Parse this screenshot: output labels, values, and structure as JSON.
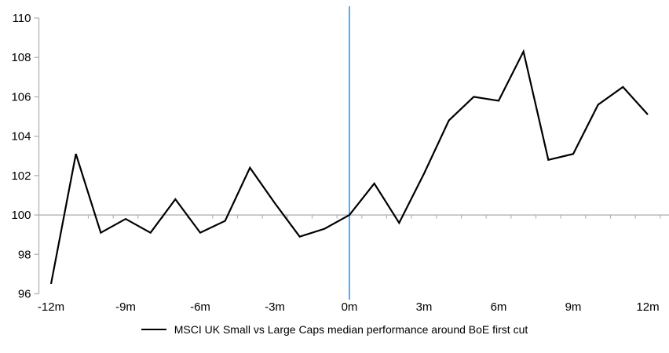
{
  "chart_data": {
    "type": "line",
    "title": "",
    "categories": [
      "-12m",
      "-11m",
      "-10m",
      "-9m",
      "-8m",
      "-7m",
      "-6m",
      "-5m",
      "-4m",
      "-3m",
      "-2m",
      "-1m",
      "0m",
      "1m",
      "2m",
      "3m",
      "4m",
      "5m",
      "6m",
      "7m",
      "8m",
      "9m",
      "10m",
      "11m",
      "12m"
    ],
    "series": [
      {
        "name": "MSCI UK Small vs Large Caps median performance around BoE first cut",
        "color": "#000000",
        "values": [
          96.5,
          103.1,
          99.1,
          99.8,
          99.1,
          100.8,
          99.1,
          99.7,
          102.4,
          100.6,
          98.9,
          99.3,
          100.0,
          101.6,
          99.6,
          102.1,
          104.8,
          106.0,
          105.8,
          108.3,
          102.8,
          103.1,
          105.6,
          106.5,
          105.1
        ]
      }
    ],
    "ylim": [
      96,
      110
    ],
    "y_ticks": [
      96,
      98,
      100,
      102,
      104,
      106,
      108,
      110
    ],
    "x_label_step": 3,
    "baseline_value": 100,
    "event_line": {
      "x_category": "0m",
      "color": "#5B9BD5"
    },
    "axis_color": "#B3B3B3",
    "text_color": "#000000",
    "grid": "baseline-only",
    "legend_position": "bottom-center"
  },
  "legend": {
    "label": "MSCI UK Small vs Large Caps median performance around BoE first cut"
  }
}
